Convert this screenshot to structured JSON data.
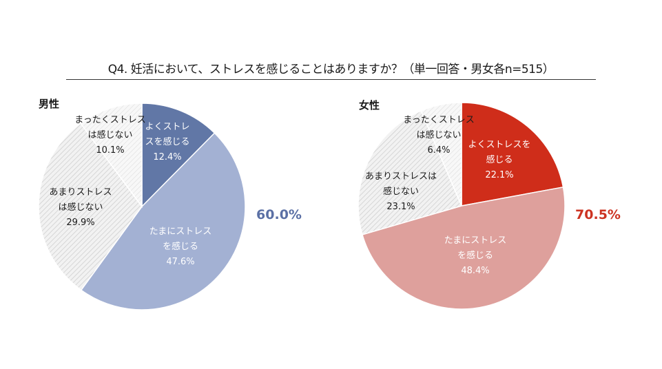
{
  "title": "Q4. 妊活において、ストレスを感じることはありますか？（単一回答・男女各n=515）",
  "chart_data": [
    {
      "type": "pie",
      "name": "男性",
      "total_label": "60.0%",
      "total_color": "#5b70a5",
      "slices": [
        {
          "label": [
            "よくストレ",
            "スを感じる"
          ],
          "value": 12.4,
          "value_label": "12.4%",
          "color": "#6177a6",
          "pattern": false,
          "text_color": "#ffffff"
        },
        {
          "label": [
            "たまにストレス",
            "を感じる"
          ],
          "value": 47.6,
          "value_label": "47.6%",
          "color": "#a3b1d3",
          "pattern": false,
          "text_color": "#ffffff"
        },
        {
          "label": [
            "あまりストレス",
            "は感じない"
          ],
          "value": 29.9,
          "value_label": "29.9%",
          "color": "#e9e9e9",
          "pattern": true,
          "text_color": "#1a1a1a"
        },
        {
          "label": [
            "まったくストレス",
            "は感じない"
          ],
          "value": 10.1,
          "value_label": "10.1%",
          "color": "#f4f4f4",
          "pattern": true,
          "text_color": "#1a1a1a"
        }
      ]
    },
    {
      "type": "pie",
      "name": "女性",
      "total_label": "70.5%",
      "total_color": "#cc3322",
      "slices": [
        {
          "label": [
            "よくストレスを",
            "感じる"
          ],
          "value": 22.1,
          "value_label": "22.1%",
          "color": "#cf2d1a",
          "pattern": false,
          "text_color": "#ffffff"
        },
        {
          "label": [
            "たまにストレス",
            "を感じる"
          ],
          "value": 48.4,
          "value_label": "48.4%",
          "color": "#dea09c",
          "pattern": false,
          "text_color": "#ffffff"
        },
        {
          "label": [
            "あまりストレスは",
            "感じない"
          ],
          "value": 23.1,
          "value_label": "23.1%",
          "color": "#e9e9e9",
          "pattern": true,
          "text_color": "#1a1a1a"
        },
        {
          "label": [
            "まったくストレス",
            "は感じない"
          ],
          "value": 6.4,
          "value_label": "6.4%",
          "color": "#f4f4f4",
          "pattern": true,
          "text_color": "#1a1a1a"
        }
      ]
    }
  ]
}
